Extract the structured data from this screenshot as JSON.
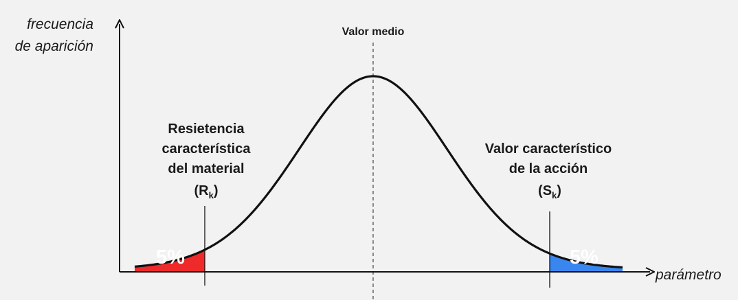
{
  "axes": {
    "y_label_line1": "frecuencia",
    "y_label_line2": "de aparición",
    "x_label": "parámetro"
  },
  "mean": {
    "label": "Valor medio"
  },
  "resistance": {
    "line1": "Resietencia",
    "line2": "característica",
    "line3": "del material",
    "symbol": "R",
    "subscript": "k",
    "tail_percent": "5%",
    "tail_color": "#ee2a2a"
  },
  "action": {
    "line1": "Valor característico",
    "line2": "de la acción",
    "symbol": "S",
    "subscript": "k",
    "tail_percent": "5%",
    "tail_color": "#3a86ef"
  },
  "colors": {
    "background": "#f2f2f2",
    "curve": "#111111",
    "mean_line": "#8a8a8a"
  }
}
